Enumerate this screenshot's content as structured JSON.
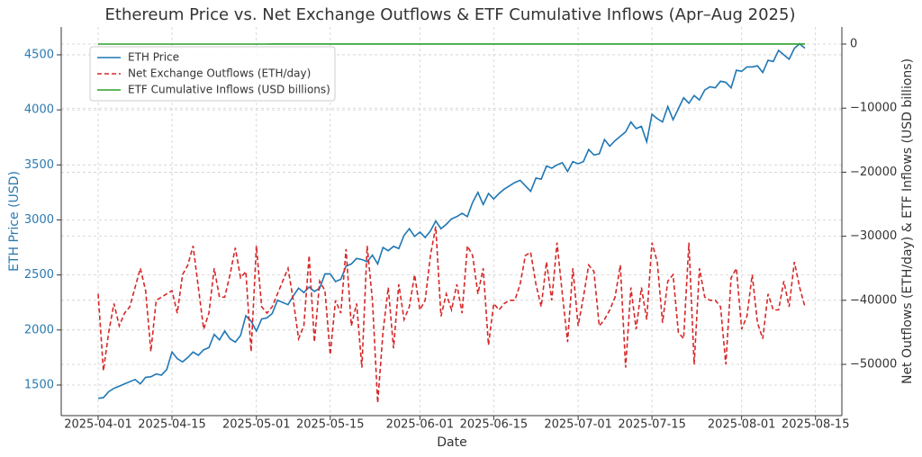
{
  "chart_data": {
    "type": "line",
    "title": "Ethereum Price vs. Net Exchange Outflows & ETF Cumulative Inflows (Apr–Aug 2025)",
    "xlabel": "Date",
    "ylabel": "ETH Price (USD)",
    "y2label": "Net Outflows (ETH/day) & ETF Inflows (USD billions)",
    "x": [
      "2025-04-01",
      "2025-04-02",
      "2025-04-03",
      "2025-04-04",
      "2025-04-05",
      "2025-04-06",
      "2025-04-07",
      "2025-04-08",
      "2025-04-09",
      "2025-04-10",
      "2025-04-11",
      "2025-04-12",
      "2025-04-13",
      "2025-04-14",
      "2025-04-15",
      "2025-04-16",
      "2025-04-17",
      "2025-04-18",
      "2025-04-19",
      "2025-04-20",
      "2025-04-21",
      "2025-04-22",
      "2025-04-23",
      "2025-04-24",
      "2025-04-25",
      "2025-04-26",
      "2025-04-27",
      "2025-04-28",
      "2025-04-29",
      "2025-04-30",
      "2025-05-01",
      "2025-05-02",
      "2025-05-03",
      "2025-05-04",
      "2025-05-05",
      "2025-05-06",
      "2025-05-07",
      "2025-05-08",
      "2025-05-09",
      "2025-05-10",
      "2025-05-11",
      "2025-05-12",
      "2025-05-13",
      "2025-05-14",
      "2025-05-15",
      "2025-05-16",
      "2025-05-17",
      "2025-05-18",
      "2025-05-19",
      "2025-05-20",
      "2025-05-21",
      "2025-05-22",
      "2025-05-23",
      "2025-05-24",
      "2025-05-25",
      "2025-05-26",
      "2025-05-27",
      "2025-05-28",
      "2025-05-29",
      "2025-05-30",
      "2025-05-31",
      "2025-06-01",
      "2025-06-02",
      "2025-06-03",
      "2025-06-04",
      "2025-06-05",
      "2025-06-06",
      "2025-06-07",
      "2025-06-08",
      "2025-06-09",
      "2025-06-10",
      "2025-06-11",
      "2025-06-12",
      "2025-06-13",
      "2025-06-14",
      "2025-06-15",
      "2025-06-16",
      "2025-06-17",
      "2025-06-18",
      "2025-06-19",
      "2025-06-20",
      "2025-06-21",
      "2025-06-22",
      "2025-06-23",
      "2025-06-24",
      "2025-06-25",
      "2025-06-26",
      "2025-06-27",
      "2025-06-28",
      "2025-06-29",
      "2025-06-30",
      "2025-07-01",
      "2025-07-02",
      "2025-07-03",
      "2025-07-04",
      "2025-07-05",
      "2025-07-06",
      "2025-07-07",
      "2025-07-08",
      "2025-07-09",
      "2025-07-10",
      "2025-07-11",
      "2025-07-12",
      "2025-07-13",
      "2025-07-14",
      "2025-07-15",
      "2025-07-16",
      "2025-07-17",
      "2025-07-18",
      "2025-07-19",
      "2025-07-20",
      "2025-07-21",
      "2025-07-22",
      "2025-07-23",
      "2025-07-24",
      "2025-07-25",
      "2025-07-26",
      "2025-07-27",
      "2025-07-28",
      "2025-07-29",
      "2025-07-30",
      "2025-07-31",
      "2025-08-01",
      "2025-08-02",
      "2025-08-03",
      "2025-08-04",
      "2025-08-05",
      "2025-08-06",
      "2025-08-07",
      "2025-08-08",
      "2025-08-09",
      "2025-08-10",
      "2025-08-11",
      "2025-08-12",
      "2025-08-13"
    ],
    "series": [
      {
        "name": "ETH Price",
        "color": "#1f77b4",
        "dash": false,
        "values": [
          1380,
          1385,
          1440,
          1470,
          1490,
          1510,
          1530,
          1550,
          1510,
          1570,
          1575,
          1600,
          1590,
          1640,
          1800,
          1740,
          1710,
          1750,
          1800,
          1770,
          1820,
          1840,
          1960,
          1910,
          1990,
          1920,
          1890,
          1950,
          2130,
          2080,
          1990,
          2100,
          2110,
          2150,
          2270,
          2250,
          2230,
          2310,
          2380,
          2340,
          2390,
          2350,
          2380,
          2510,
          2510,
          2440,
          2460,
          2580,
          2600,
          2650,
          2640,
          2620,
          2680,
          2600,
          2750,
          2720,
          2760,
          2740,
          2860,
          2920,
          2850,
          2890,
          2840,
          2900,
          2990,
          2920,
          2960,
          3010,
          3030,
          3060,
          3030,
          3160,
          3250,
          3140,
          3240,
          3190,
          3240,
          3280,
          3310,
          3340,
          3360,
          3310,
          3260,
          3380,
          3370,
          3490,
          3470,
          3500,
          3520,
          3440,
          3530,
          3510,
          3530,
          3640,
          3590,
          3600,
          3730,
          3670,
          3720,
          3760,
          3800,
          3890,
          3830,
          3850,
          3710,
          3960,
          3920,
          3890,
          4030,
          3910,
          4010,
          4110,
          4060,
          4130,
          4090,
          4180,
          4210,
          4200,
          4260,
          4250,
          4200,
          4360,
          4350,
          4390,
          4390,
          4400,
          4340,
          4450,
          4440,
          4540,
          4500,
          4460,
          4560,
          4600,
          4560
        ]
      },
      {
        "name": "Net Exchange Outflows (ETH/day)",
        "color": "#d62728",
        "dash": true,
        "axis": "y2",
        "values": [
          -39000,
          -51000,
          -45000,
          -40500,
          -44000,
          -42000,
          -41000,
          -38000,
          -35000,
          -38500,
          -48000,
          -40000,
          -39500,
          -39000,
          -38500,
          -42000,
          -36000,
          -34500,
          -31500,
          -38000,
          -44500,
          -42000,
          -35000,
          -39500,
          -39500,
          -36000,
          -31800,
          -36500,
          -35500,
          -48000,
          -31500,
          -41000,
          -42000,
          -41000,
          -39000,
          -37000,
          -35000,
          -40000,
          -46000,
          -44000,
          -33000,
          -46500,
          -37000,
          -38500,
          -48500,
          -40000,
          -42000,
          -32000,
          -44000,
          -40500,
          -50500,
          -31500,
          -40000,
          -56000,
          -45000,
          -38000,
          -47500,
          -37500,
          -43000,
          -41000,
          -36000,
          -41500,
          -40000,
          -33000,
          -28500,
          -42500,
          -39000,
          -41500,
          -37500,
          -42000,
          -31500,
          -33000,
          -39000,
          -35000,
          -47000,
          -40500,
          -41500,
          -40500,
          -40000,
          -40000,
          -37500,
          -33000,
          -32500,
          -37500,
          -41000,
          -34000,
          -40000,
          -31000,
          -39000,
          -46500,
          -35000,
          -44000,
          -39500,
          -34500,
          -35500,
          -44000,
          -43000,
          -41500,
          -39500,
          -34500,
          -50500,
          -38000,
          -44500,
          -38000,
          -43000,
          -31000,
          -34000,
          -43500,
          -37000,
          -36000,
          -45000,
          -46000,
          -31000,
          -50000,
          -35000,
          -39500,
          -40000,
          -40000,
          -41000,
          -50000,
          -36500,
          -35000,
          -44500,
          -42500,
          -36000,
          -43500,
          -46000,
          -39000,
          -41500,
          -41500,
          -37000,
          -41000,
          -34000,
          -38000,
          -41000
        ]
      },
      {
        "name": "ETF Cumulative Inflows (USD billions)",
        "color": "#2ca02c",
        "dash": false,
        "axis": "y2",
        "values": [
          0.5,
          0.6,
          0.7,
          0.8,
          0.9,
          1.0,
          1.1,
          1.2,
          1.3,
          1.4,
          1.5,
          1.6,
          1.7,
          1.8,
          1.9,
          2.0,
          2.1,
          2.2,
          2.3,
          2.4,
          2.5,
          2.6,
          2.7,
          2.8,
          2.9,
          3.0,
          3.1,
          3.2,
          3.3,
          3.4,
          3.5,
          3.6,
          3.7,
          3.8,
          3.9,
          4.0,
          4.1,
          4.2,
          4.3,
          4.4,
          4.5,
          4.6,
          4.7,
          4.8,
          4.9,
          5.0,
          5.1,
          5.2,
          5.3,
          5.4,
          5.5,
          5.6,
          5.7,
          5.8,
          5.9,
          6.0,
          6.1,
          6.2,
          6.3,
          6.4,
          6.5,
          6.6,
          6.7,
          6.8,
          6.9,
          7.0,
          7.1,
          7.2,
          7.3,
          7.4,
          7.5,
          7.6,
          7.7,
          7.8,
          7.9,
          8.0,
          8.1,
          8.2,
          8.3,
          8.4,
          8.5,
          8.6,
          8.7,
          8.8,
          8.9,
          9.0,
          9.1,
          9.2,
          9.3,
          9.4,
          9.5,
          9.6,
          9.7,
          9.8,
          9.9,
          10.0,
          10.1,
          10.2,
          10.3,
          10.4,
          10.5,
          10.6,
          10.7,
          10.8,
          10.9,
          11.0,
          11.1,
          11.2,
          11.3,
          11.4,
          11.5,
          11.6,
          11.7,
          11.8,
          11.9,
          12.0,
          12.1,
          12.2,
          12.3,
          12.4,
          12.5,
          12.6,
          12.7,
          12.8,
          12.9,
          13.0,
          13.1,
          13.2,
          13.3,
          13.4,
          13.5,
          13.6,
          13.7,
          13.8,
          13.9
        ]
      }
    ],
    "xlim": [
      "2025-03-25",
      "2025-08-20"
    ],
    "xticks": [
      "2025-04-01",
      "2025-04-15",
      "2025-05-01",
      "2025-05-15",
      "2025-06-01",
      "2025-06-15",
      "2025-07-01",
      "2025-07-15",
      "2025-08-01",
      "2025-08-15"
    ],
    "ylim": [
      1222,
      4753
    ],
    "yticks": [
      1500,
      2000,
      2500,
      3000,
      3500,
      4000,
      4500
    ],
    "y2lim": [
      -58000,
      2670
    ],
    "y2ticks": [
      {
        "value": -50000,
        "label": "−50000"
      },
      {
        "value": -40000,
        "label": "−40000"
      },
      {
        "value": -30000,
        "label": "−30000"
      },
      {
        "value": -20000,
        "label": "−20000"
      },
      {
        "value": -10000,
        "label": "−10000"
      },
      0
    ],
    "grid": true,
    "legend": "upper left",
    "ylabel_color": "#2a7ab0"
  }
}
